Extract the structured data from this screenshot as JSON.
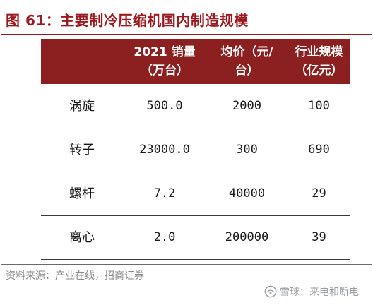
{
  "figure": {
    "title": "图 61：主要制冷压缩机国内制造规模",
    "source": "资料来源：产业在线，招商证券"
  },
  "table": {
    "headers": [
      {
        "line1": "",
        "line2": ""
      },
      {
        "line1": "2021 销量",
        "line2": "（万台）"
      },
      {
        "line1": "均价（元/",
        "line2": "台）"
      },
      {
        "line1": "行业规模",
        "line2": "（亿元）"
      }
    ],
    "rows": [
      {
        "type": "涡旋",
        "sales": "500.0",
        "price": "2000",
        "scale": "100"
      },
      {
        "type": "转子",
        "sales": "23000.0",
        "price": "300",
        "scale": "690"
      },
      {
        "type": "螺杆",
        "sales": "7.2",
        "price": "40000",
        "scale": "29"
      },
      {
        "type": "离心",
        "sales": "2.0",
        "price": "200000",
        "scale": "39"
      }
    ]
  },
  "watermark": {
    "text": "雪球：来电和断电",
    "icon": "snowball-logo-icon"
  },
  "colors": {
    "accent": "#9c1a1f",
    "header_bg": "#8c1f20"
  }
}
